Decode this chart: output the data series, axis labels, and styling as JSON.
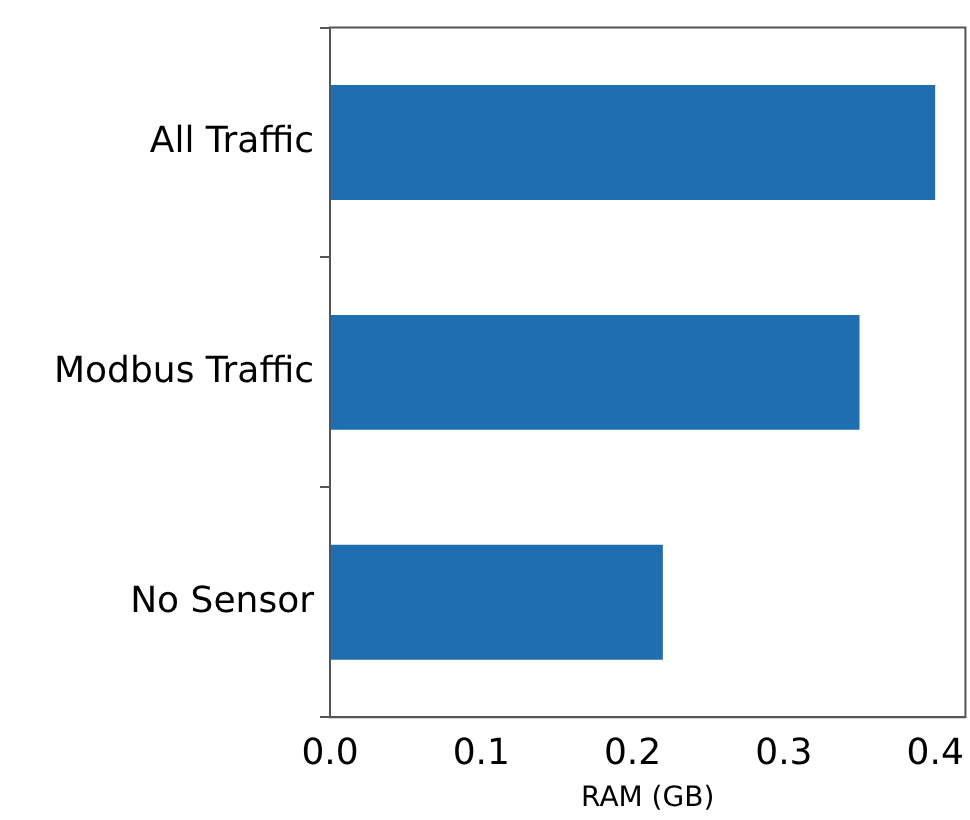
{
  "chart_data": {
    "type": "bar",
    "orientation": "horizontal",
    "xlabel": "RAM (GB)",
    "categories": [
      "All Traffic",
      "Modbus Traffic",
      "No Sensor"
    ],
    "values": [
      0.4,
      0.35,
      0.22
    ],
    "color": "#1f6eb0",
    "xlim": [
      0,
      0.42
    ],
    "xticks": [
      {
        "value": 0,
        "label": "0.0"
      },
      {
        "value": 0.1,
        "label": "0.1"
      },
      {
        "value": 0.2,
        "label": "0.2"
      },
      {
        "value": 0.3,
        "label": "0.3"
      },
      {
        "value": 0.4,
        "label": "0.4"
      }
    ],
    "grid": false,
    "legend": false
  }
}
